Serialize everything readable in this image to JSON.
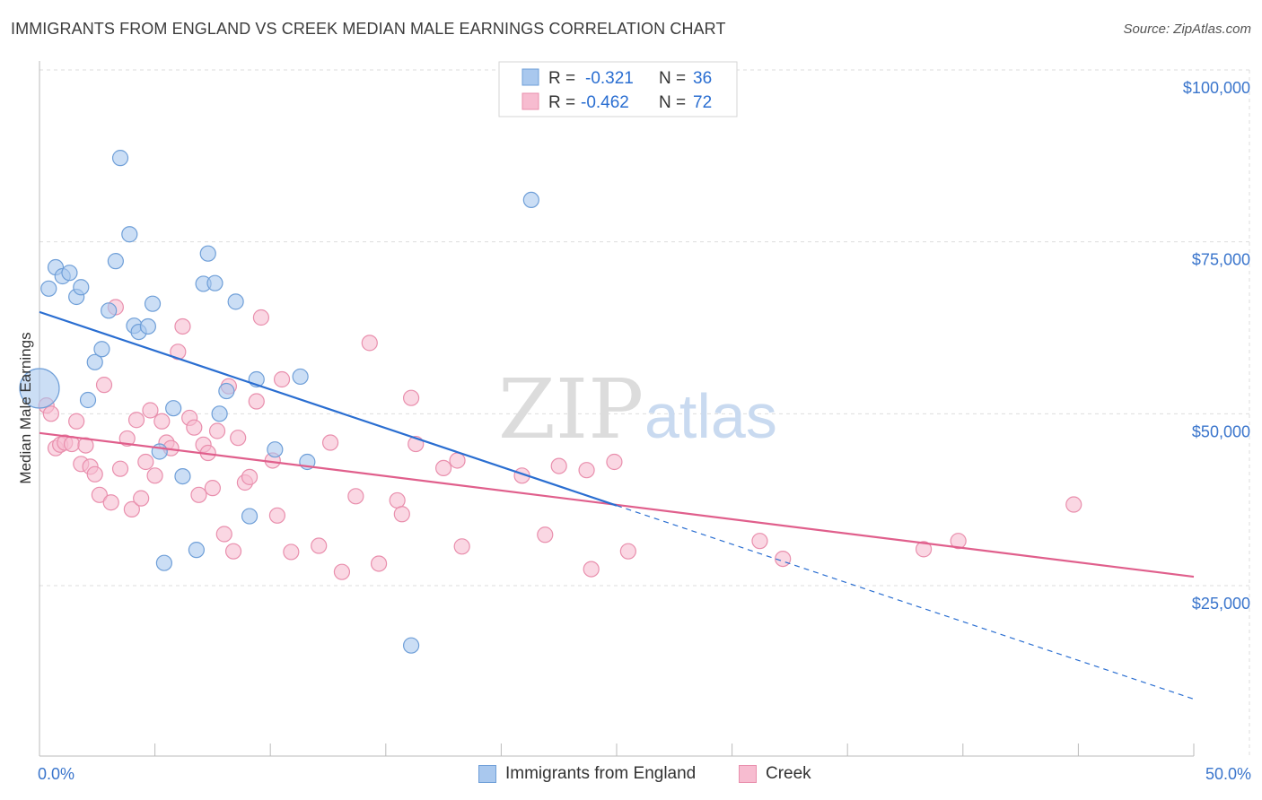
{
  "header": {
    "title": "IMMIGRANTS FROM ENGLAND VS CREEK MEDIAN MALE EARNINGS CORRELATION CHART",
    "source": "Source: ZipAtlas.com"
  },
  "watermark": {
    "zip": "ZIP",
    "atlas": "atlas"
  },
  "colors": {
    "blue_fill": "#a9c8ee",
    "blue_stroke": "#6f9fd8",
    "blue_line": "#2a6ed1",
    "pink_fill": "#f7bcd0",
    "pink_stroke": "#e98fad",
    "pink_line": "#e05f8c",
    "axis_label": "#3a75cc",
    "grid": "#dddddd"
  },
  "chart_data": {
    "type": "scatter",
    "title": "IMMIGRANTS FROM ENGLAND VS CREEK MEDIAN MALE EARNINGS CORRELATION CHART",
    "xlabel": "",
    "ylabel": "Median Male Earnings",
    "xlim": [
      0,
      50
    ],
    "ylim": [
      3000,
      104000
    ],
    "x_tick_labels": [
      "0.0%",
      "50.0%"
    ],
    "y_ticks": [
      25000,
      50000,
      75000,
      100000
    ],
    "y_tick_labels": [
      "$25,000",
      "$50,000",
      "$75,000",
      "$100,000"
    ],
    "grid": true,
    "legend_stats": [
      {
        "r_label": "R =",
        "r_value": "-0.321",
        "n_label": "N =",
        "n_value": "36"
      },
      {
        "r_label": "R =",
        "r_value": "-0.462",
        "n_label": "N =",
        "n_value": "72"
      }
    ],
    "series": [
      {
        "name": "Immigrants from England",
        "color": "#6f9fd8",
        "points": [
          [
            0.0,
            53700,
            "big"
          ],
          [
            0.4,
            68200
          ],
          [
            0.7,
            71300
          ],
          [
            1.0,
            70000
          ],
          [
            1.3,
            70500
          ],
          [
            1.6,
            67000
          ],
          [
            1.8,
            68400
          ],
          [
            2.1,
            52000
          ],
          [
            2.4,
            57500
          ],
          [
            2.7,
            59400
          ],
          [
            3.0,
            65000
          ],
          [
            3.3,
            72200
          ],
          [
            3.5,
            87200
          ],
          [
            3.9,
            76100
          ],
          [
            4.1,
            62800
          ],
          [
            4.3,
            61900
          ],
          [
            4.7,
            62700
          ],
          [
            4.9,
            66000
          ],
          [
            5.2,
            44500
          ],
          [
            5.8,
            50800
          ],
          [
            6.2,
            40900
          ],
          [
            6.8,
            30200
          ],
          [
            7.1,
            68900
          ],
          [
            7.3,
            73300
          ],
          [
            7.6,
            69000
          ],
          [
            7.8,
            50000
          ],
          [
            8.1,
            53300
          ],
          [
            8.5,
            66300
          ],
          [
            9.1,
            35100
          ],
          [
            9.4,
            55000
          ],
          [
            10.2,
            44800
          ],
          [
            11.3,
            55400
          ],
          [
            11.6,
            43000
          ],
          [
            16.1,
            16300
          ],
          [
            21.3,
            81100
          ],
          [
            5.4,
            28300
          ]
        ]
      },
      {
        "name": "Creek",
        "color": "#e98fad",
        "points": [
          [
            0.3,
            51200
          ],
          [
            0.5,
            50000
          ],
          [
            0.7,
            45000
          ],
          [
            0.9,
            45500
          ],
          [
            1.1,
            45800
          ],
          [
            1.4,
            45600
          ],
          [
            1.6,
            48900
          ],
          [
            1.8,
            42700
          ],
          [
            2.0,
            45400
          ],
          [
            2.2,
            42300
          ],
          [
            2.4,
            41200
          ],
          [
            2.6,
            38200
          ],
          [
            2.8,
            54200
          ],
          [
            3.1,
            37100
          ],
          [
            3.3,
            65500
          ],
          [
            3.5,
            42000
          ],
          [
            3.8,
            46400
          ],
          [
            4.0,
            36100
          ],
          [
            4.2,
            49100
          ],
          [
            4.4,
            37700
          ],
          [
            4.6,
            43000
          ],
          [
            4.8,
            50500
          ],
          [
            5.0,
            41000
          ],
          [
            5.3,
            48900
          ],
          [
            5.5,
            45800
          ],
          [
            5.7,
            45000
          ],
          [
            6.0,
            59000
          ],
          [
            6.2,
            62700
          ],
          [
            6.5,
            49400
          ],
          [
            6.7,
            48000
          ],
          [
            6.9,
            38200
          ],
          [
            7.1,
            45500
          ],
          [
            7.3,
            44300
          ],
          [
            7.5,
            39200
          ],
          [
            7.7,
            47500
          ],
          [
            8.0,
            32500
          ],
          [
            8.2,
            54000
          ],
          [
            8.4,
            30000
          ],
          [
            8.6,
            46500
          ],
          [
            8.9,
            40000
          ],
          [
            9.1,
            40800
          ],
          [
            9.4,
            51800
          ],
          [
            9.6,
            64000
          ],
          [
            10.1,
            43200
          ],
          [
            10.5,
            55000
          ],
          [
            10.3,
            35200
          ],
          [
            10.9,
            29900
          ],
          [
            12.1,
            30800
          ],
          [
            12.6,
            45800
          ],
          [
            13.1,
            27000
          ],
          [
            13.7,
            38000
          ],
          [
            14.7,
            28200
          ],
          [
            14.3,
            60300
          ],
          [
            15.5,
            37400
          ],
          [
            15.7,
            35400
          ],
          [
            16.1,
            52300
          ],
          [
            16.3,
            45600
          ],
          [
            17.5,
            42100
          ],
          [
            18.1,
            43200
          ],
          [
            18.3,
            30700
          ],
          [
            20.9,
            41000
          ],
          [
            21.9,
            32400
          ],
          [
            22.5,
            42400
          ],
          [
            23.7,
            41800
          ],
          [
            23.9,
            27400
          ],
          [
            24.9,
            43000
          ],
          [
            25.5,
            30000
          ],
          [
            31.2,
            31500
          ],
          [
            32.2,
            28900
          ],
          [
            38.3,
            30300
          ],
          [
            39.8,
            31500
          ],
          [
            44.8,
            36800
          ]
        ]
      }
    ],
    "trend_lines": [
      {
        "series": "Immigrants from England",
        "solid_x": [
          0,
          25
        ],
        "dashed_x": [
          25,
          50
        ],
        "y_at_0": 64800,
        "slope_per_pct": -1126
      },
      {
        "series": "Creek",
        "solid_x": [
          0,
          50
        ],
        "y_at_0": 47200,
        "slope_per_pct": -418
      }
    ]
  }
}
